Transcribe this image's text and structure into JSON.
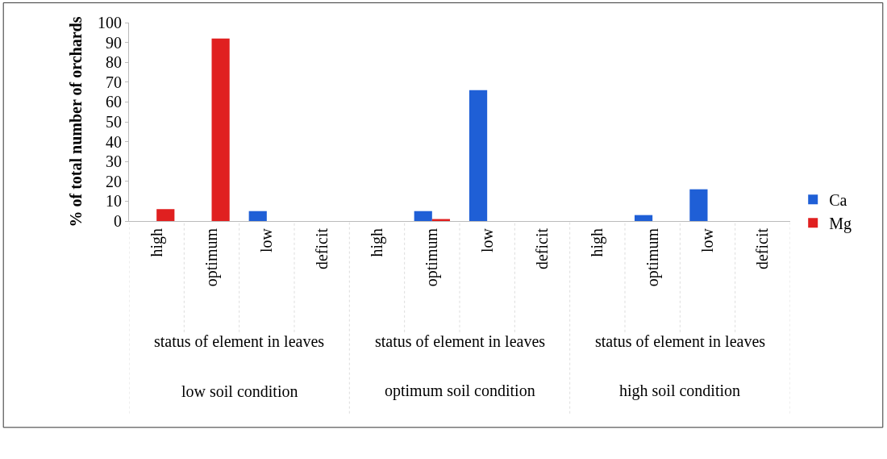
{
  "chart_data": {
    "type": "bar",
    "categories": [
      "high",
      "optimum",
      "low",
      "deficit",
      "high",
      "optimum",
      "low",
      "deficit",
      "high",
      "optimum",
      "low",
      "deficit"
    ],
    "series": [
      {
        "name": "Ca",
        "color": "#1f5fd6",
        "values": [
          null,
          null,
          5,
          null,
          null,
          5,
          66,
          null,
          null,
          3,
          16,
          null
        ]
      },
      {
        "name": "Mg",
        "color": "#e02020",
        "values": [
          6,
          92,
          null,
          null,
          null,
          1,
          null,
          null,
          null,
          null,
          null,
          null
        ]
      }
    ],
    "ylabel": "% of total number of orchards",
    "ylim": [
      0,
      100
    ],
    "yticks": [
      0,
      10,
      20,
      30,
      40,
      50,
      60,
      70,
      80,
      90,
      100
    ],
    "annotations": [
      "status of element in leaves",
      "status of element in leaves",
      "status of element in leaves",
      "low soil condition",
      "optimum soil condition",
      "high soil condition"
    ],
    "legend": "right"
  }
}
